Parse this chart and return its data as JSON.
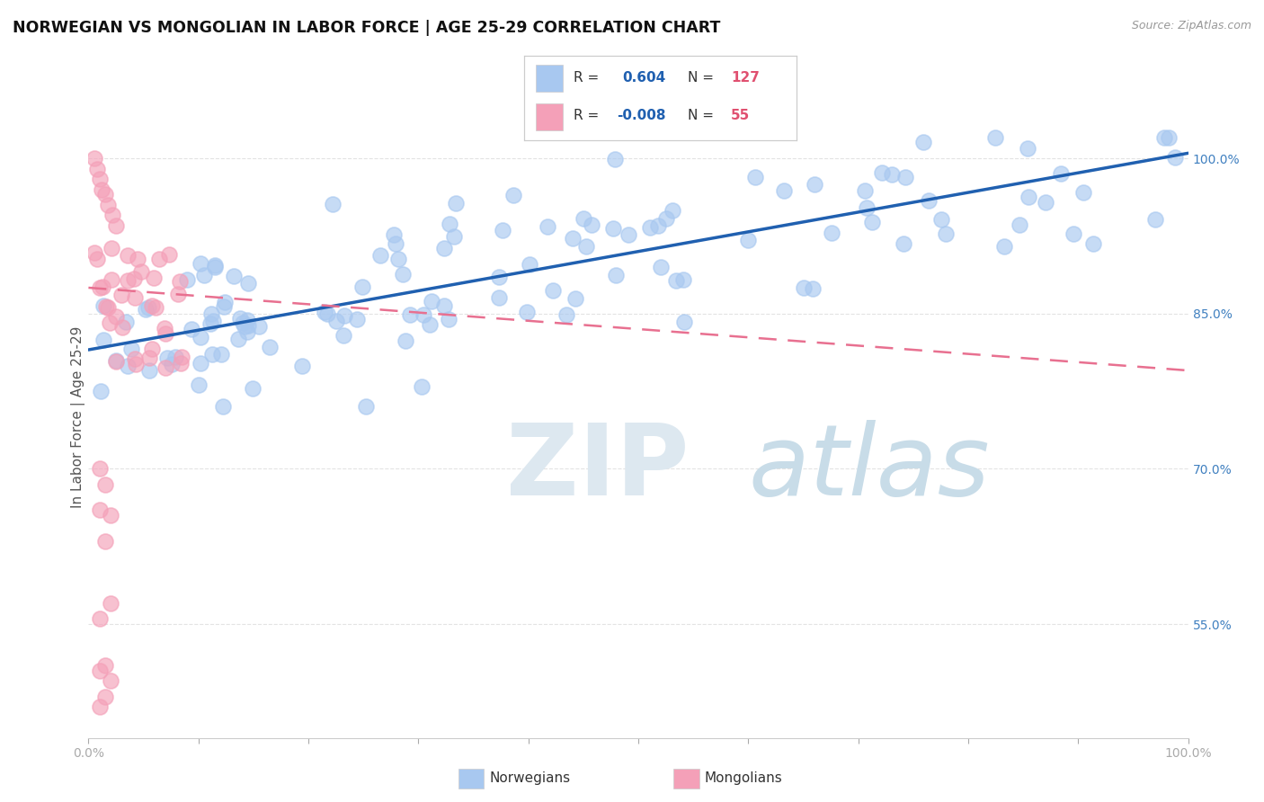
{
  "title": "NORWEGIAN VS MONGOLIAN IN LABOR FORCE | AGE 25-29 CORRELATION CHART",
  "source": "Source: ZipAtlas.com",
  "ylabel": "In Labor Force | Age 25-29",
  "xlim": [
    0.0,
    1.0
  ],
  "ylim": [
    0.44,
    1.06
  ],
  "norwegian_R": 0.604,
  "norwegian_N": 127,
  "mongolian_R": -0.008,
  "mongolian_N": 55,
  "norwegian_color": "#a8c8f0",
  "mongolian_color": "#f4a0b8",
  "norwegian_edge_color": "#a8c8f0",
  "mongolian_edge_color": "#f4a0b8",
  "norwegian_line_color": "#2060b0",
  "mongolian_line_color": "#e87090",
  "legend_color_nor": "#a8c8f0",
  "legend_color_mon": "#f4a0b8",
  "legend_R_nor_color": "#2060b0",
  "legend_R_mon_color": "#2060b0",
  "legend_N_color": "#e05070",
  "watermark_zip_color": "#dde8f0",
  "watermark_atlas_color": "#c8dce8",
  "background_color": "#ffffff",
  "grid_color": "#e0e0e0",
  "ytick_color": "#4080c0",
  "xtick_color": "#888888",
  "ytick_values": [
    0.55,
    0.7,
    0.85,
    1.0
  ],
  "ytick_labels": [
    "55.0%",
    "70.0%",
    "85.0%",
    "100.0%"
  ],
  "nor_line_start_x": 0.0,
  "nor_line_end_x": 1.0,
  "nor_line_start_y": 0.815,
  "nor_line_end_y": 1.005,
  "mon_line_start_x": 0.0,
  "mon_line_end_x": 1.0,
  "mon_line_start_y": 0.875,
  "mon_line_end_y": 0.795
}
